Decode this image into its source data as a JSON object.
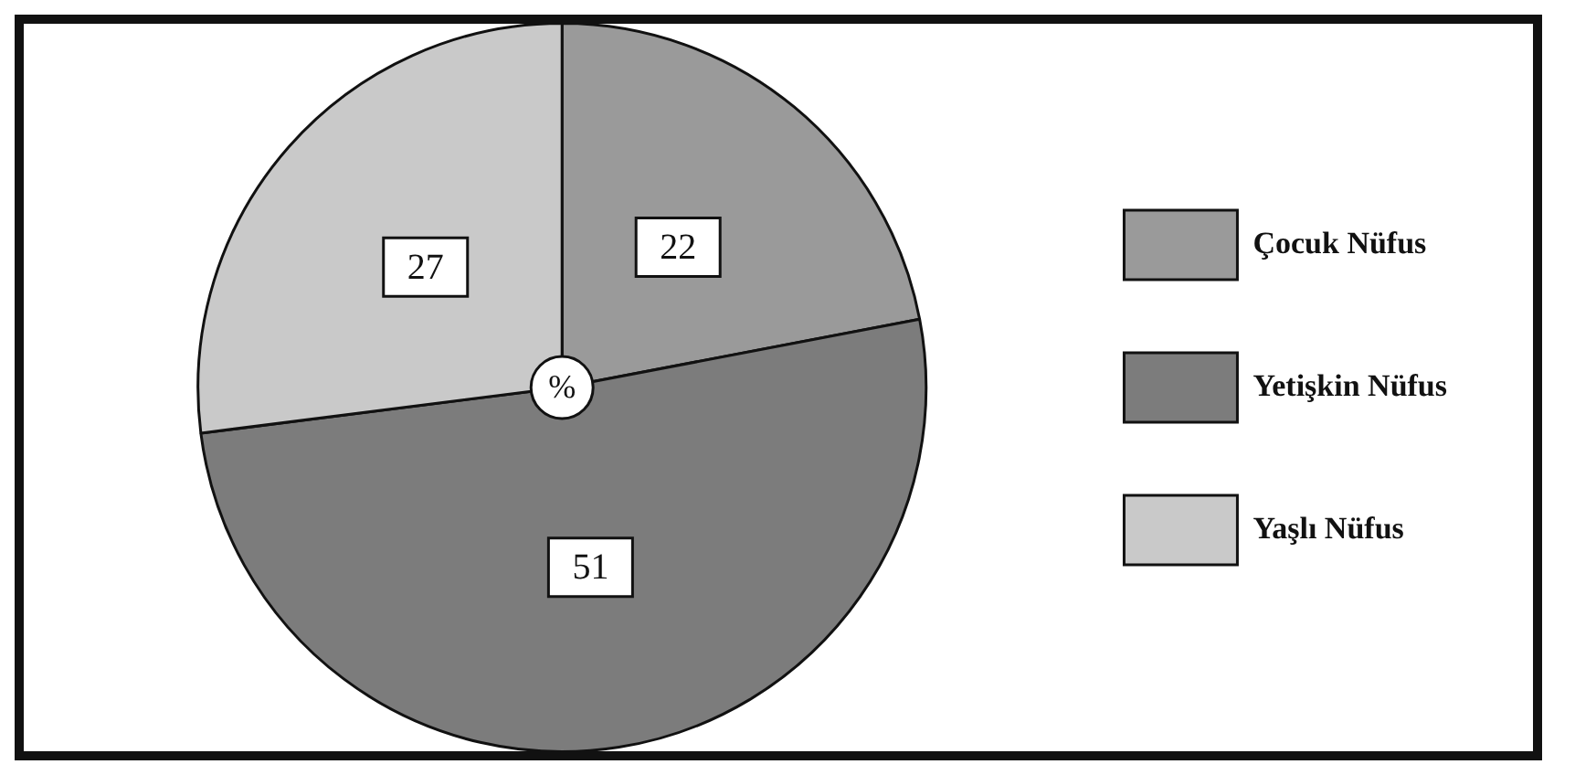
{
  "chart_data": {
    "type": "pie",
    "categories": [
      "Çocuk Nüfus",
      "Yetişkin Nüfus",
      "Yaşlı Nüfus"
    ],
    "values": [
      22,
      51,
      27
    ],
    "colors": [
      "#9a9a9a",
      "#7c7c7c",
      "#c9c9c9"
    ],
    "data_labels": true,
    "legend": "right",
    "annotations": [
      "%"
    ]
  }
}
